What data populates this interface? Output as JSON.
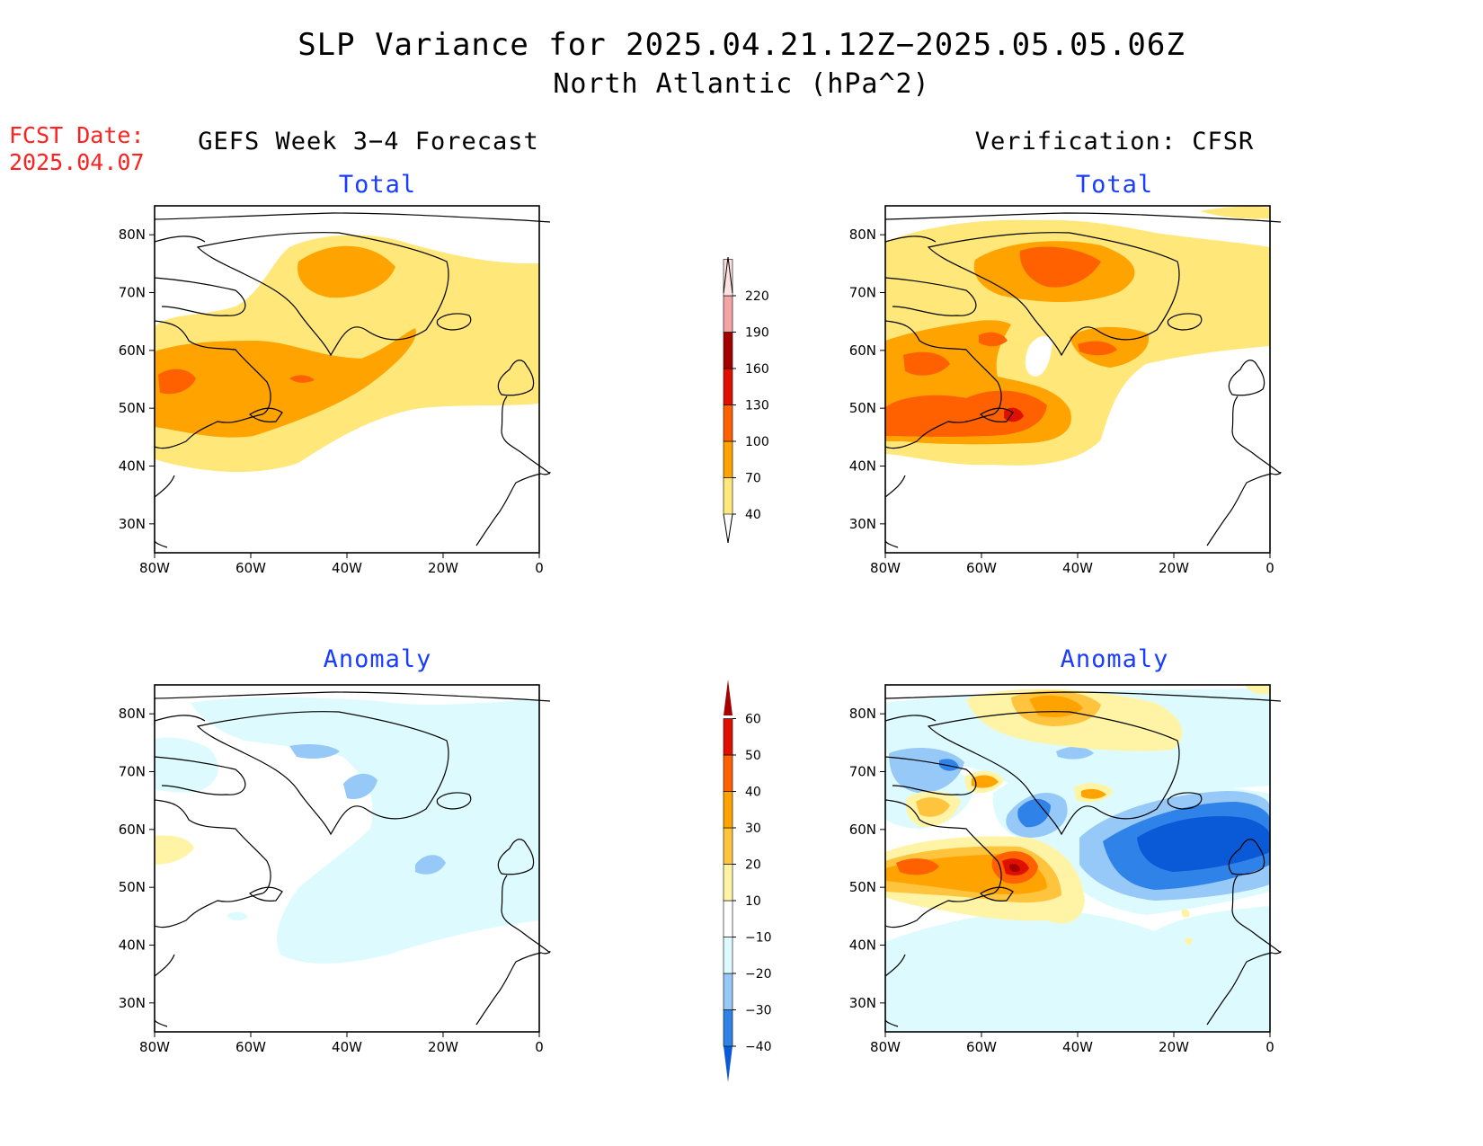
{
  "title": {
    "line1": "SLP Variance for 2025.04.21.12Z−2025.05.05.06Z",
    "line2": "North Atlantic (hPa^2)"
  },
  "forecast_date": {
    "label": "FCST Date:",
    "value": "2025.04.07"
  },
  "columns": {
    "left": "GEFS Week 3−4 Forecast",
    "right": "Verification: CFSR"
  },
  "panels": {
    "total_label": "Total",
    "anomaly_label": "Anomaly",
    "lon_ticks": [
      "80W",
      "60W",
      "40W",
      "20W",
      "0"
    ],
    "lat_ticks": [
      "80N",
      "70N",
      "60N",
      "50N",
      "40N",
      "30N"
    ],
    "lon_range": [
      -80,
      0
    ],
    "lat_range": [
      25,
      85
    ]
  },
  "total_colorbar": {
    "levels": [
      "40",
      "70",
      "100",
      "130",
      "160",
      "190",
      "220"
    ],
    "colors": [
      "#ffe77a",
      "#ffa300",
      "#ff6000",
      "#e01000",
      "#a50000",
      "#f4a4a4",
      "#fde0e0"
    ]
  },
  "anomaly_colorbar": {
    "levels": [
      "−40",
      "−30",
      "−20",
      "−10",
      "10",
      "20",
      "30",
      "40",
      "50",
      "60"
    ],
    "colors": [
      "#0a5ad8",
      "#2f83e8",
      "#96c8f8",
      "#ddfbff",
      "#ffffff",
      "#fff4a6",
      "#ffc43e",
      "#ffa300",
      "#ff6000",
      "#e01000",
      "#a50000"
    ]
  }
}
